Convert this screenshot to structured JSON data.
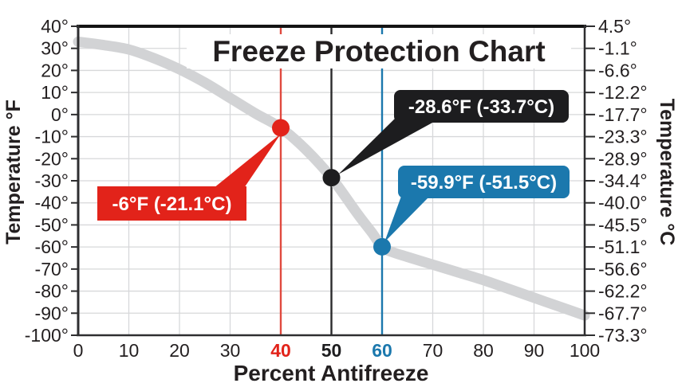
{
  "chart_data": {
    "type": "line",
    "title": "Freeze Protection Chart",
    "xlabel": "Percent Antifreeze",
    "ylabel_left": "Temperature °F",
    "ylabel_right": "Temperature °C",
    "xlim": [
      0,
      100
    ],
    "ylim_f": [
      -100,
      40
    ],
    "grid": "on",
    "x_ticks": [
      "0",
      "10",
      "20",
      "30",
      "40",
      "50",
      "60",
      "70",
      "80",
      "90",
      "100"
    ],
    "y_ticks_f": [
      "40°",
      "30°",
      "20°",
      "10°",
      "0°",
      "-10°",
      "-20°",
      "-30°",
      "-40°",
      "-50°",
      "-60°",
      "-70°",
      "-80°",
      "-90°",
      "-100°"
    ],
    "y_ticks_c": [
      "4.5°",
      "-1.1°",
      "-6.6°",
      "-12.2°",
      "-17.7°",
      "-23.3°",
      "-28.9°",
      "-34.4°",
      "-40.0°",
      "-45.5°",
      "-51.1°",
      "-56.6°",
      "-62.2°",
      "-67.7°",
      "-73.3°"
    ],
    "curve": {
      "name": "freeze-point-curve",
      "color": "#d2d3d5",
      "x": [
        0,
        5,
        10,
        15,
        20,
        25,
        30,
        35,
        40,
        45,
        50,
        55,
        58,
        60,
        62,
        65,
        70,
        75,
        80,
        85,
        90,
        95,
        100
      ],
      "t_f": [
        33,
        31.5,
        29.5,
        25.5,
        20.5,
        14.5,
        7.5,
        0.5,
        -6,
        -16,
        -28.6,
        -44.5,
        -53.5,
        -59.9,
        -62.3,
        -64.5,
        -68,
        -71.5,
        -75,
        -79,
        -83,
        -87,
        -91
      ]
    },
    "markers": [
      {
        "x_pct": 40,
        "temp_f": -6,
        "temp_c": -21.1,
        "label": "-6°F (-21.1°C)",
        "color": "#e2231a",
        "line_color": "#e04a3f",
        "text_color": "#ffffff"
      },
      {
        "x_pct": 50,
        "temp_f": -28.6,
        "temp_c": -33.7,
        "label": "-28.6°F (-33.7°C)",
        "color": "#1d1d1f",
        "line_color": "#2a2a2c",
        "text_color": "#ffffff"
      },
      {
        "x_pct": 60,
        "temp_f": -59.9,
        "temp_c": -51.5,
        "label": "-59.9°F (-51.5°C)",
        "color": "#1b78ad",
        "line_color": "#1b78ad",
        "text_color": "#ffffff"
      }
    ],
    "colors": {
      "text": "#231f20",
      "grid": "#d7d8da",
      "frame": "#2e2e30",
      "frame_top": "#141414",
      "title_bg": "#ffffff"
    },
    "legend": "none"
  }
}
